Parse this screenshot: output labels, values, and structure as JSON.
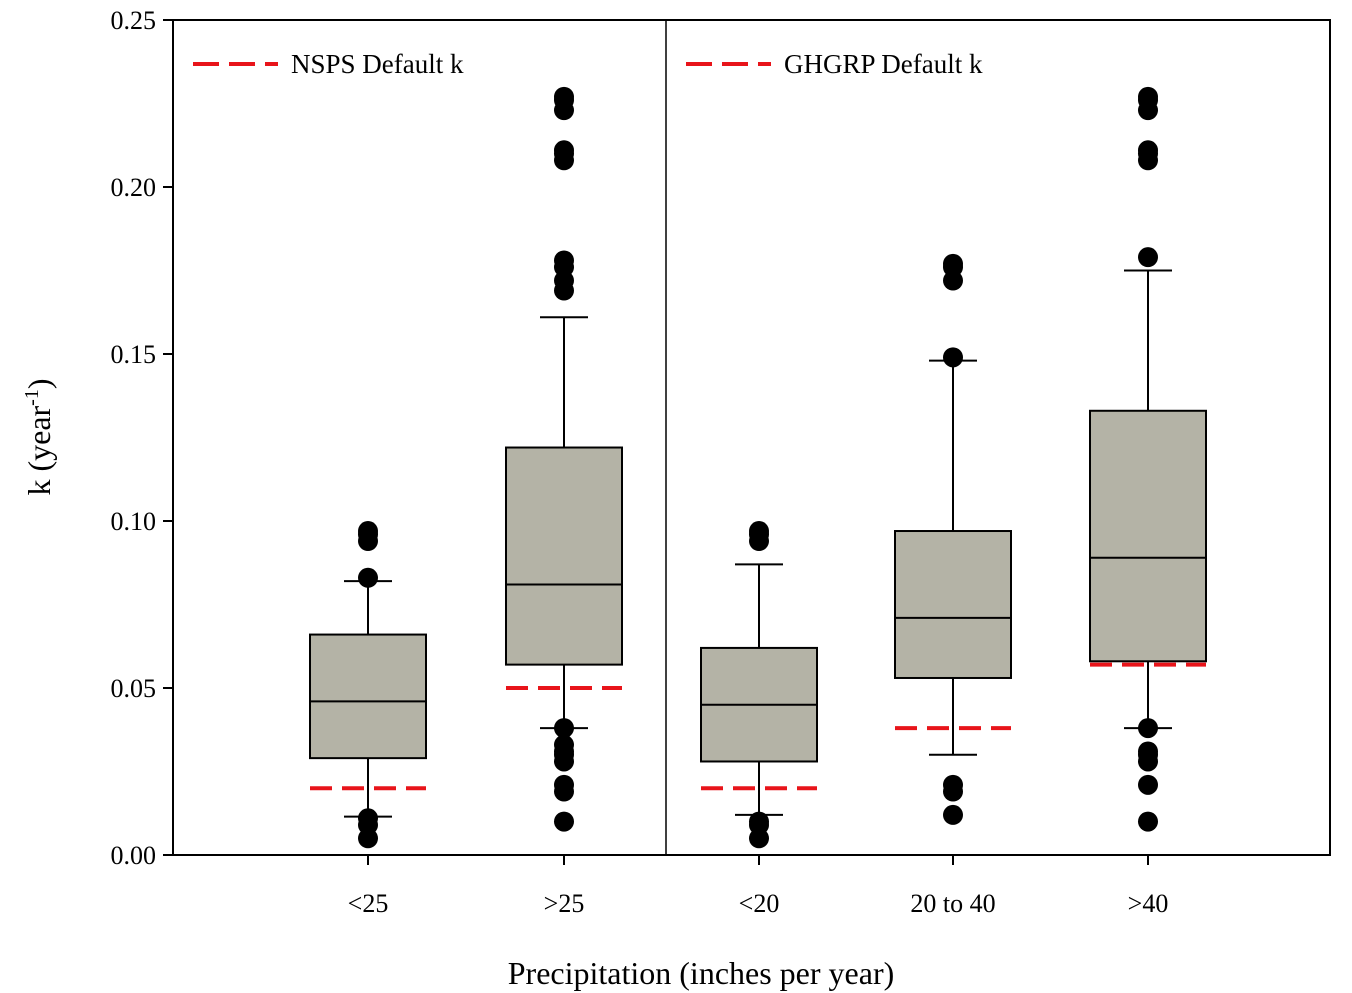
{
  "chart_data": {
    "type": "box",
    "xlabel": "Precipitation (inches per year)",
    "ylabel_main": "k (year",
    "ylabel_sup": "-1",
    "ylabel_close": ")",
    "ylim": [
      0,
      0.25
    ],
    "yticks": [
      0.0,
      0.05,
      0.1,
      0.15,
      0.2,
      0.25
    ],
    "ytick_labels": [
      "0.00",
      "0.05",
      "0.10",
      "0.15",
      "0.20",
      "0.25"
    ],
    "panels": [
      {
        "legend_label": "NSPS Default k",
        "legend_color": "#e8141a",
        "legend_position": "top-left",
        "groups": [
          {
            "category": "<25",
            "q1": 0.029,
            "median": 0.046,
            "q3": 0.066,
            "whisker_low": 0.0115,
            "whisker_high": 0.082,
            "default_k": 0.02,
            "outliers": [
              0.097,
              0.096,
              0.094,
              0.083,
              0.011,
              0.009,
              0.005
            ]
          },
          {
            "category": ">25",
            "q1": 0.057,
            "median": 0.081,
            "q3": 0.122,
            "whisker_low": 0.038,
            "whisker_high": 0.161,
            "default_k": 0.05,
            "outliers": [
              0.227,
              0.226,
              0.223,
              0.211,
              0.21,
              0.208,
              0.178,
              0.176,
              0.172,
              0.169,
              0.038,
              0.033,
              0.031,
              0.03,
              0.028,
              0.021,
              0.019,
              0.01
            ]
          }
        ]
      },
      {
        "legend_label": "GHGRP Default k",
        "legend_color": "#e8141a",
        "legend_position": "top-left",
        "groups": [
          {
            "category": "<20",
            "q1": 0.028,
            "median": 0.045,
            "q3": 0.062,
            "whisker_low": 0.012,
            "whisker_high": 0.087,
            "default_k": 0.02,
            "outliers": [
              0.097,
              0.096,
              0.094,
              0.01,
              0.009,
              0.005
            ]
          },
          {
            "category": "20 to 40",
            "q1": 0.053,
            "median": 0.071,
            "q3": 0.097,
            "whisker_low": 0.03,
            "whisker_high": 0.148,
            "default_k": 0.038,
            "outliers": [
              0.177,
              0.176,
              0.172,
              0.149,
              0.021,
              0.019,
              0.012
            ]
          },
          {
            "category": ">40",
            "q1": 0.058,
            "median": 0.089,
            "q3": 0.133,
            "whisker_low": 0.038,
            "whisker_high": 0.175,
            "default_k": 0.057,
            "outliers": [
              0.227,
              0.226,
              0.223,
              0.211,
              0.21,
              0.208,
              0.179,
              0.038,
              0.031,
              0.03,
              0.028,
              0.021,
              0.01
            ]
          }
        ]
      }
    ],
    "box_fill": "#b4b3a6",
    "marker_color": "#000000"
  }
}
